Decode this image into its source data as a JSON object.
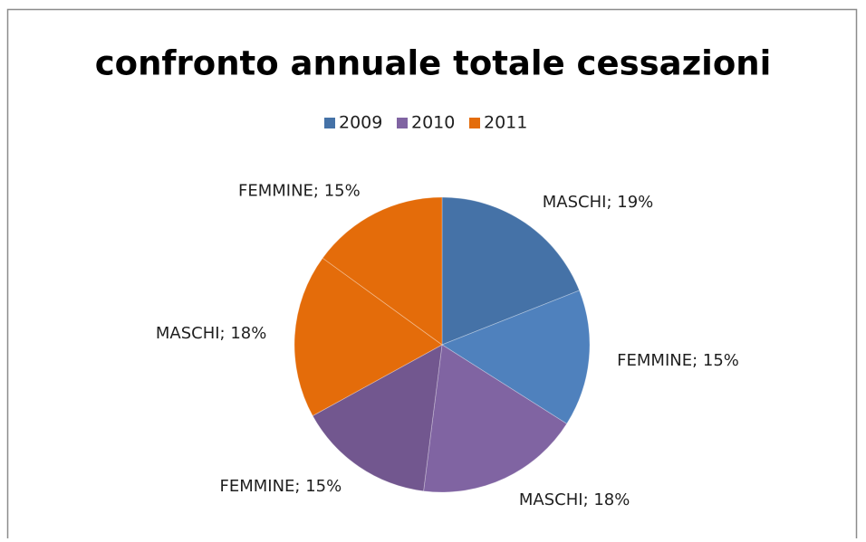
{
  "chart_data": {
    "type": "pie",
    "title": "confronto annuale totale cessazioni",
    "series": [
      {
        "name": "2009",
        "color": "#4572a7",
        "colors": [
          "#4572a7",
          "#4f81bd"
        ],
        "values": [
          19,
          15
        ],
        "value_labels": [
          "MASCHI; 19%",
          "FEMMINE; 15%"
        ]
      },
      {
        "name": "2010",
        "color": "#8064a2",
        "colors": [
          "#8064a2",
          "#72578f"
        ],
        "values": [
          18,
          15
        ],
        "value_labels": [
          "MASCHI; 18%",
          "FEMMINE; 15%"
        ]
      },
      {
        "name": "2011",
        "color": "#e46c0a",
        "colors": [
          "#e46c0a",
          "#e46c0a"
        ],
        "values": [
          18,
          15
        ],
        "value_labels": [
          "MASCHI; 18%",
          "FEMMINE; 15%"
        ]
      }
    ],
    "legend": "top"
  }
}
